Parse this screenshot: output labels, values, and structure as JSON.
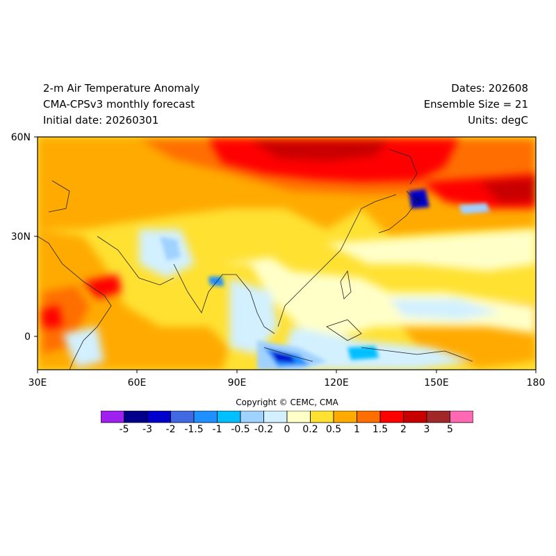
{
  "header": {
    "title": "2-m Air Temperature Anomaly",
    "model": "CMA-CPSv3 monthly forecast",
    "initial_date": "Initial date: 20260301",
    "dates": "Dates: 202608",
    "ensemble": "Ensemble Size = 21",
    "units": "Units: degC"
  },
  "axes": {
    "lon_labels": [
      "30E",
      "60E",
      "90E",
      "120E",
      "150E",
      "180"
    ],
    "lat_labels": [
      "60N",
      "30N",
      "0"
    ]
  },
  "copyright": "Copyright © CEMC, CMA",
  "colorbar": {
    "colors": [
      "#a020f0",
      "#00008b",
      "#0000cd",
      "#4169e1",
      "#1e90ff",
      "#00bfff",
      "#a0d2ff",
      "#d2f0ff",
      "#ffffc8",
      "#ffe132",
      "#ffaa00",
      "#ff6e00",
      "#ff0000",
      "#c80000",
      "#a02828",
      "#ff69b4"
    ],
    "labels": [
      "-5",
      "-3",
      "-2",
      "-1.5",
      "-1",
      "-0.5",
      "-0.2",
      "0",
      "0.2",
      "0.5",
      "1",
      "1.5",
      "2",
      "3",
      "5"
    ]
  }
}
